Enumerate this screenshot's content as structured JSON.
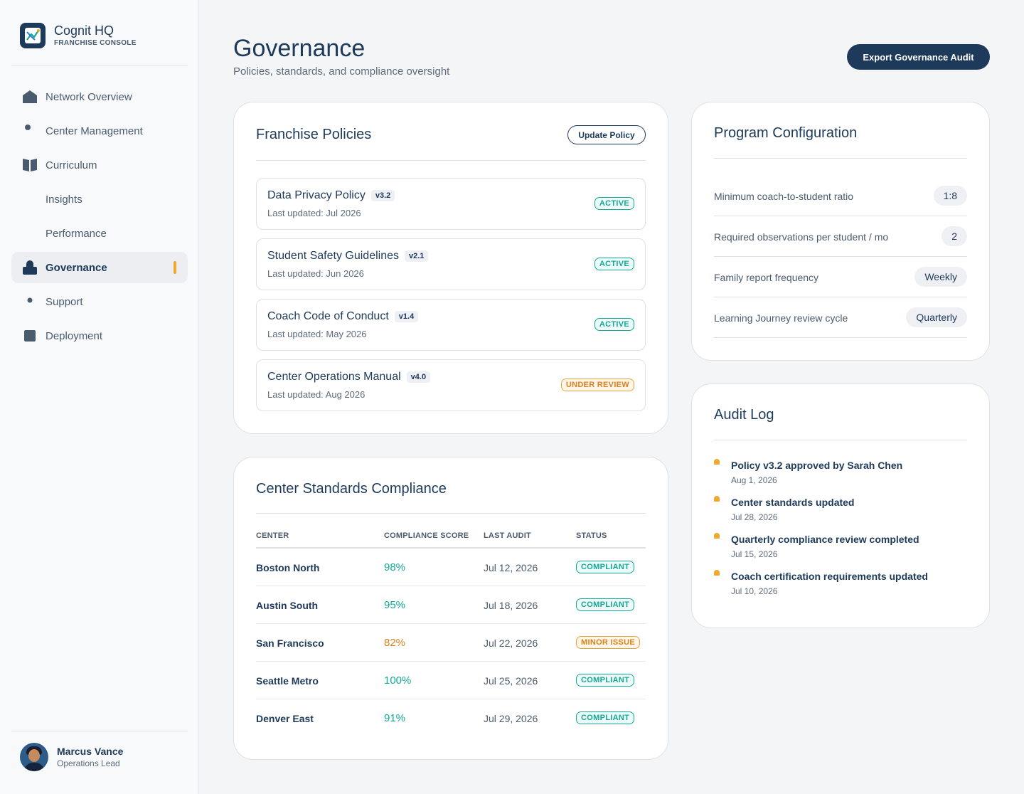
{
  "brand": {
    "name": "Cognit HQ",
    "subtitle": "FRANCHISE CONSOLE"
  },
  "nav": [
    {
      "label": "Network Overview",
      "icon": "home-icon"
    },
    {
      "label": "Center Management",
      "icon": "dot-icon"
    },
    {
      "label": "Curriculum",
      "icon": "book-icon"
    },
    {
      "label": "Insights",
      "icon": ""
    },
    {
      "label": "Performance",
      "icon": ""
    },
    {
      "label": "Governance",
      "icon": "lock-icon",
      "active": true
    },
    {
      "label": "Support",
      "icon": "dot-icon"
    },
    {
      "label": "Deployment",
      "icon": "square-icon"
    }
  ],
  "user": {
    "name": "Marcus Vance",
    "role": "Operations Lead"
  },
  "header": {
    "title": "Governance",
    "subtitle": "Policies, standards, and compliance oversight",
    "export_label": "Export Governance Audit"
  },
  "policies": {
    "title": "Franchise Policies",
    "update_label": "Update Policy",
    "items": [
      {
        "name": "Data Privacy Policy",
        "version": "v3.2",
        "updated": "Last updated: Jul 2026",
        "status": "ACTIVE"
      },
      {
        "name": "Student Safety Guidelines",
        "version": "v2.1",
        "updated": "Last updated: Jun 2026",
        "status": "ACTIVE"
      },
      {
        "name": "Coach Code of Conduct",
        "version": "v1.4",
        "updated": "Last updated: May 2026",
        "status": "ACTIVE"
      },
      {
        "name": "Center Operations Manual",
        "version": "v4.0",
        "updated": "Last updated: Aug 2026",
        "status": "UNDER REVIEW"
      }
    ]
  },
  "compliance": {
    "title": "Center Standards Compliance",
    "columns": [
      "CENTER",
      "COMPLIANCE SCORE",
      "LAST AUDIT",
      "STATUS"
    ],
    "rows": [
      {
        "center": "Boston North",
        "score": "98%",
        "audit": "Jul 12, 2026",
        "status": "COMPLIANT"
      },
      {
        "center": "Austin South",
        "score": "95%",
        "audit": "Jul 18, 2026",
        "status": "COMPLIANT"
      },
      {
        "center": "San Francisco",
        "score": "82%",
        "audit": "Jul 22, 2026",
        "status": "MINOR ISSUE"
      },
      {
        "center": "Seattle Metro",
        "score": "100%",
        "audit": "Jul 25, 2026",
        "status": "COMPLIANT"
      },
      {
        "center": "Denver East",
        "score": "91%",
        "audit": "Jul 29, 2026",
        "status": "COMPLIANT"
      }
    ]
  },
  "program": {
    "title": "Program Configuration",
    "rows": [
      {
        "label": "Minimum coach-to-student ratio",
        "value": "1:8"
      },
      {
        "label": "Required observations per student / mo",
        "value": "2"
      },
      {
        "label": "Family report frequency",
        "value": "Weekly"
      },
      {
        "label": "Learning Journey review cycle",
        "value": "Quarterly"
      }
    ]
  },
  "audit": {
    "title": "Audit Log",
    "items": [
      {
        "title": "Policy v3.2 approved by Sarah Chen",
        "date": "Aug 1, 2026"
      },
      {
        "title": "Center standards updated",
        "date": "Jul 28, 2026"
      },
      {
        "title": "Quarterly compliance review completed",
        "date": "Jul 15, 2026"
      },
      {
        "title": "Coach certification requirements updated",
        "date": "Jul 10, 2026"
      }
    ]
  },
  "colors": {
    "primary": "#1d3a5a",
    "accent": "#f0a830",
    "success": "#13a898",
    "warning": "#d9821d"
  }
}
